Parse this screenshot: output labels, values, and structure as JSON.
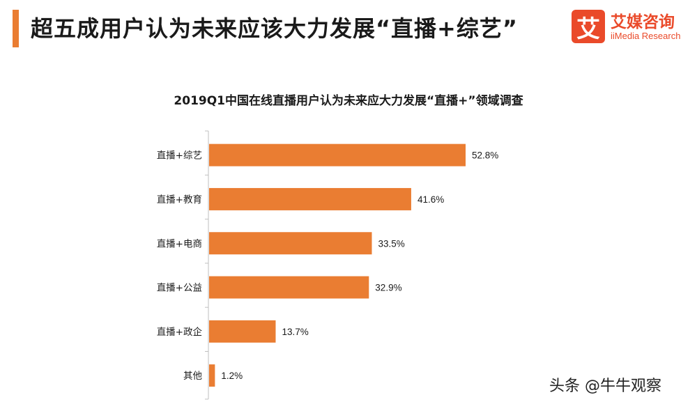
{
  "header": {
    "title": "超五成用户认为未来应该大力发展“直播+综艺”"
  },
  "logo": {
    "mark": "艾",
    "name_cn": "艾媒咨询",
    "name_en": "iiMedia Research",
    "brand_color": "#ea4a2a",
    "icon": "iimedia-logo-icon"
  },
  "chart_data": {
    "type": "bar",
    "orientation": "horizontal",
    "title": "2019Q1中国在线直播用户认为未来应大力发展“直播+”领域调查",
    "categories": [
      "直播+综艺",
      "直播+教育",
      "直播+电商",
      "直播+公益",
      "直播+政企",
      "其他"
    ],
    "values": [
      52.8,
      41.6,
      33.5,
      32.9,
      13.7,
      1.2
    ],
    "value_labels": [
      "52.8%",
      "41.6%",
      "33.5%",
      "32.9%",
      "13.7%",
      "1.2%"
    ],
    "unit": "%",
    "xlim": [
      0,
      60
    ],
    "bar_color": "#ea7d32",
    "grid": false,
    "legend": "none"
  },
  "watermark": {
    "text": "头条 @牛牛观察"
  }
}
